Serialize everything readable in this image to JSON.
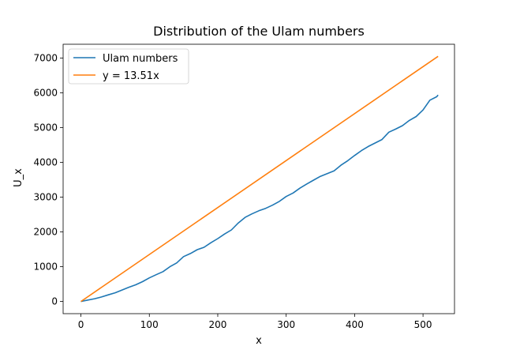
{
  "chart_data": {
    "type": "line",
    "title": "Distribution of the Ulam numbers",
    "xlabel": "x",
    "ylabel": "U_x",
    "xlim": [
      -26,
      546
    ],
    "ylim": [
      -350,
      7400
    ],
    "xticks": [
      0,
      100,
      200,
      300,
      400,
      500
    ],
    "yticks": [
      0,
      1000,
      2000,
      3000,
      4000,
      5000,
      6000,
      7000
    ],
    "grid": false,
    "legend_position": "top-left",
    "series": [
      {
        "name": "Ulam numbers",
        "color": "#1f77b4",
        "x": [
          0,
          10,
          20,
          30,
          40,
          50,
          60,
          70,
          80,
          90,
          100,
          110,
          120,
          130,
          140,
          150,
          160,
          170,
          180,
          190,
          200,
          210,
          220,
          230,
          240,
          250,
          260,
          270,
          280,
          290,
          300,
          310,
          320,
          330,
          340,
          350,
          360,
          370,
          380,
          390,
          400,
          410,
          420,
          430,
          440,
          450,
          460,
          470,
          480,
          490,
          500,
          510,
          520,
          522
        ],
        "y": [
          0,
          40,
          80,
          130,
          190,
          250,
          330,
          410,
          480,
          570,
          680,
          770,
          860,
          1000,
          1110,
          1290,
          1380,
          1490,
          1560,
          1690,
          1810,
          1940,
          2060,
          2260,
          2420,
          2520,
          2610,
          2680,
          2770,
          2880,
          3020,
          3120,
          3260,
          3380,
          3490,
          3600,
          3680,
          3760,
          3920,
          4050,
          4200,
          4340,
          4460,
          4560,
          4660,
          4870,
          4960,
          5060,
          5210,
          5320,
          5510,
          5790,
          5890,
          5940
        ]
      },
      {
        "name": "y = 13.51x",
        "color": "#ff7f0e",
        "x": [
          0,
          522
        ],
        "y": [
          0,
          7052.22
        ]
      }
    ]
  }
}
